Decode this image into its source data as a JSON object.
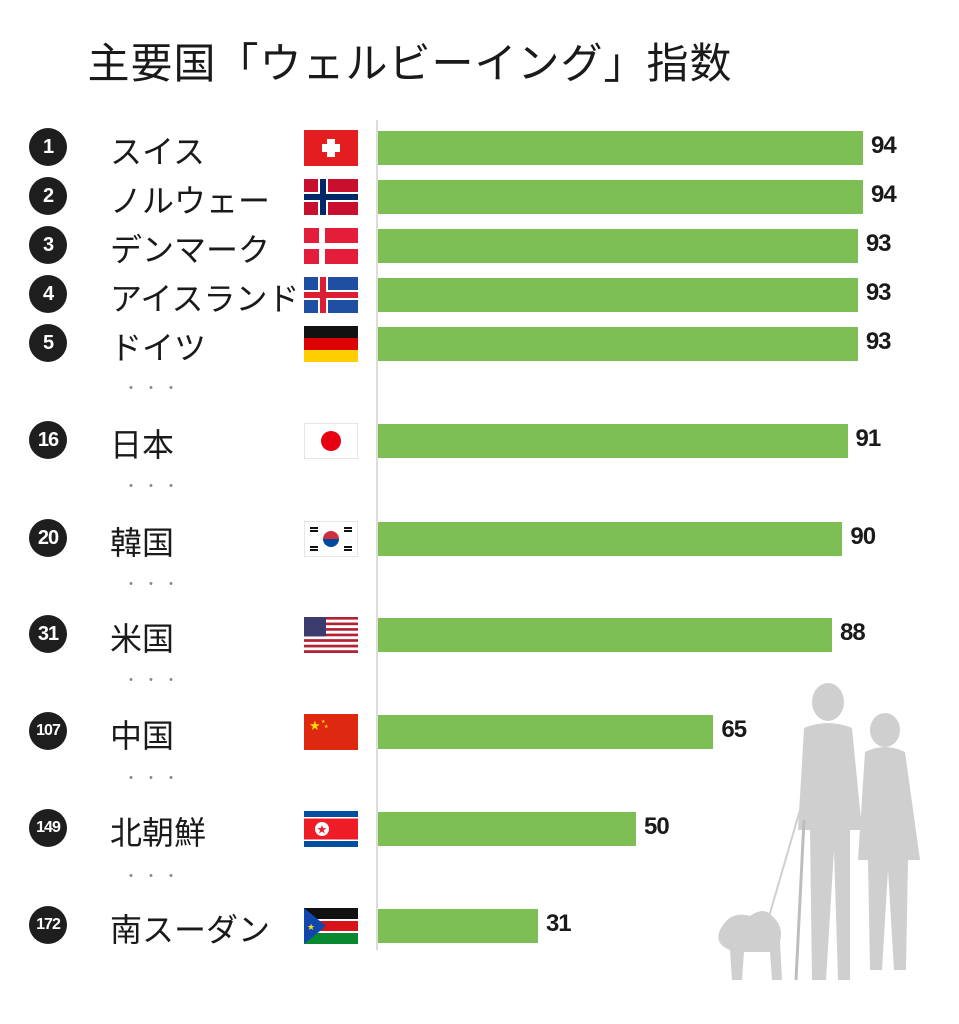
{
  "chart_data": {
    "type": "bar",
    "orientation": "horizontal",
    "title": "主要国「ウェルビーイング」指数",
    "categories": [
      "スイス",
      "ノルウェー",
      "デンマーク",
      "アイスランド",
      "ドイツ",
      "日本",
      "韓国",
      "米国",
      "中国",
      "北朝鮮",
      "南スーダン"
    ],
    "ranks": [
      "1",
      "2",
      "3",
      "4",
      "5",
      "16",
      "20",
      "31",
      "107",
      "149",
      "172"
    ],
    "values": [
      94,
      94,
      93,
      93,
      93,
      91,
      90,
      88,
      65,
      50,
      31
    ],
    "value_labels": [
      "94",
      "94",
      "93",
      "93",
      "93",
      "91",
      "90",
      "88",
      "65",
      "50",
      "31"
    ],
    "flags": [
      "switzerland-flag",
      "norway-flag",
      "denmark-flag",
      "iceland-flag",
      "germany-flag",
      "japan-flag",
      "south-korea-flag",
      "usa-flag",
      "china-flag",
      "north-korea-flag",
      "south-sudan-flag"
    ],
    "bar_color": "#7ebf55",
    "xlim": [
      0,
      94
    ],
    "gap_marker": "・・・"
  }
}
